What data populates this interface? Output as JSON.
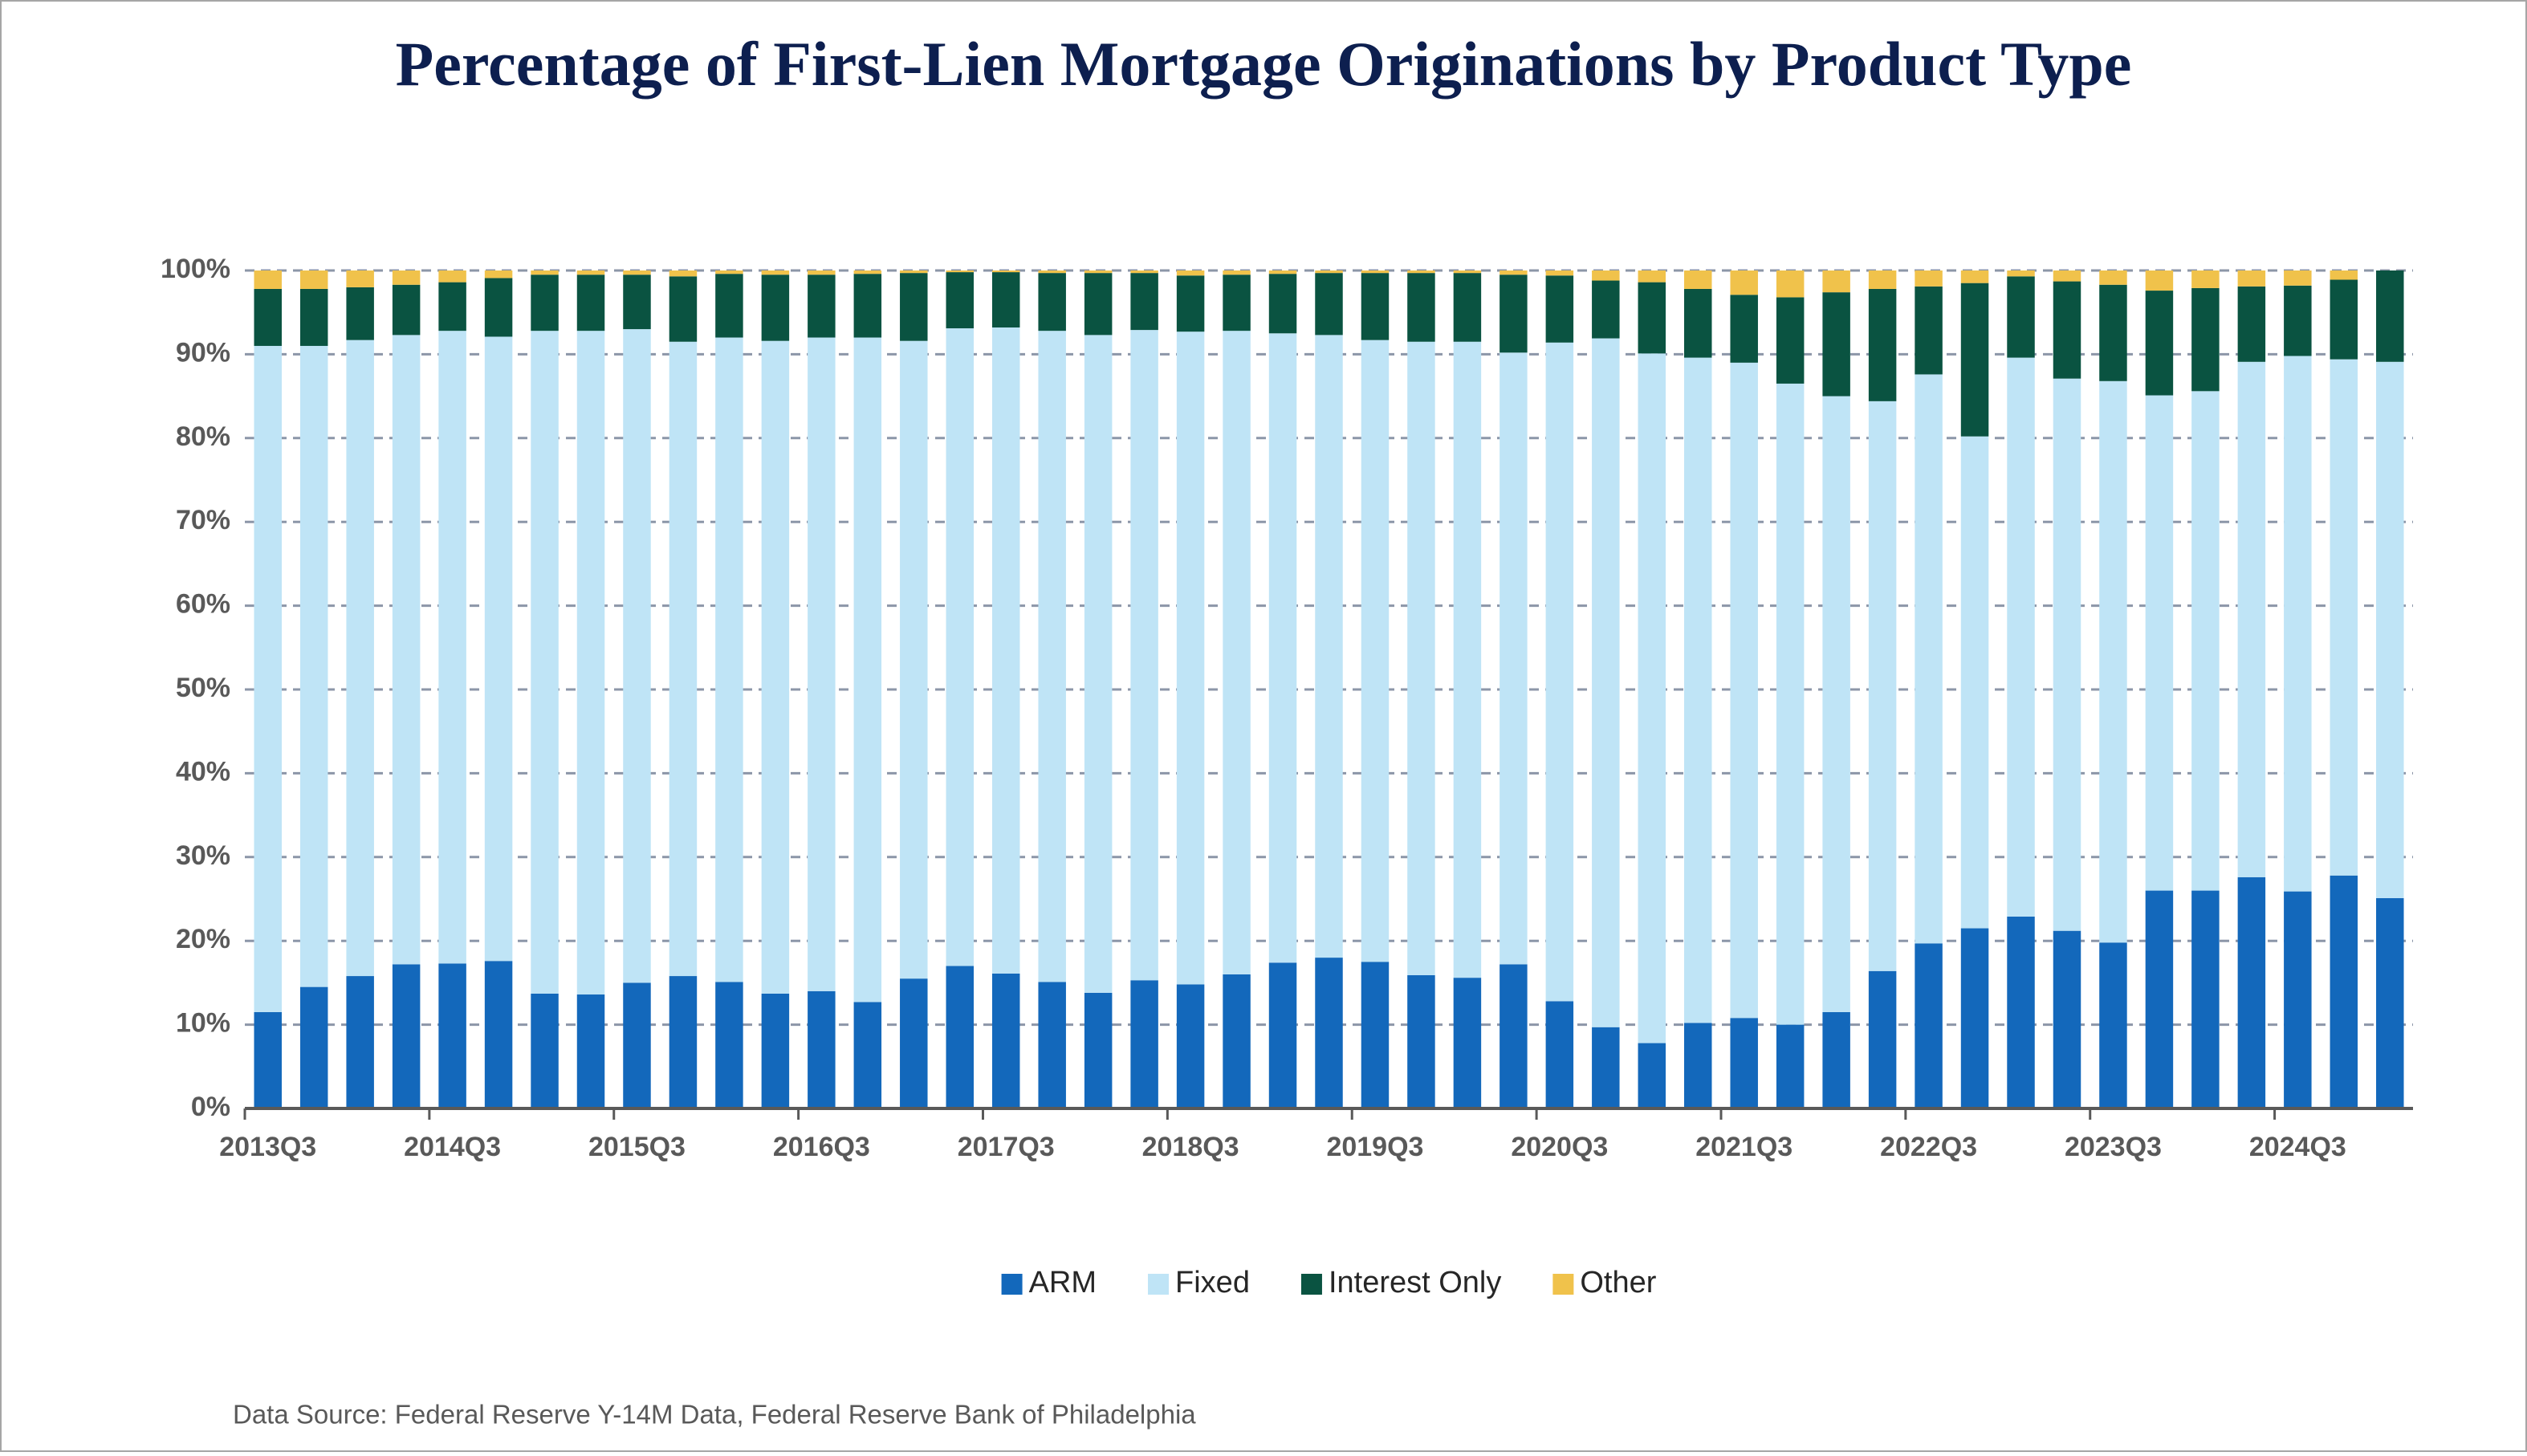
{
  "chart_data": {
    "type": "stacked_bar",
    "title": "Percentage of First-Lien Mortgage Originations by Product Type",
    "source": "Data Source: Federal Reserve Y-14M Data, Federal Reserve Bank of Philadelphia",
    "categories": [
      "2013Q3",
      null,
      null,
      null,
      "2014Q3",
      null,
      null,
      null,
      "2015Q3",
      null,
      null,
      null,
      "2016Q3",
      null,
      null,
      null,
      "2017Q3",
      null,
      null,
      null,
      "2018Q3",
      null,
      null,
      null,
      "2019Q3",
      null,
      null,
      null,
      "2020Q3",
      null,
      null,
      null,
      "2021Q3",
      null,
      null,
      null,
      "2022Q3",
      null,
      null,
      null,
      "2023Q3",
      null,
      null,
      null,
      "2024Q3",
      null,
      null
    ],
    "series": [
      {
        "name": "ARM",
        "color": "#1368bb",
        "values": [
          11.5,
          14.5,
          15.8,
          17.2,
          17.3,
          17.6,
          13.7,
          13.6,
          15,
          15.8,
          15.1,
          13.7,
          14,
          12.7,
          15.5,
          17,
          16.1,
          15.1,
          13.8,
          15.3,
          14.8,
          16,
          17.4,
          18,
          17.5,
          15.9,
          15.6,
          17.2,
          12.8,
          9.7,
          7.8,
          10.2,
          10.8,
          10,
          11.5,
          16.4,
          19.7,
          21.5,
          22.9,
          21.2,
          19.8,
          26,
          26,
          27.6,
          25.9,
          27.8,
          25.1
        ]
      },
      {
        "name": "Fixed",
        "color": "#bfe4f6",
        "values": [
          79.5,
          76.5,
          75.9,
          75.1,
          75.5,
          74.5,
          79.1,
          79.2,
          78,
          75.7,
          76.9,
          77.9,
          78,
          79.3,
          76.1,
          76.1,
          77.1,
          77.7,
          78.5,
          77.6,
          77.9,
          76.8,
          75.1,
          74.3,
          74.2,
          75.6,
          75.9,
          73,
          78.6,
          82.2,
          82.3,
          79.4,
          78.2,
          76.5,
          73.5,
          68,
          67.9,
          58.7,
          66.7,
          65.9,
          67,
          59.1,
          59.6,
          61.5,
          63.9,
          61.6,
          64
        ]
      },
      {
        "name": "Interest Only",
        "color": "#0a5341",
        "values": [
          6.8,
          6.8,
          6.3,
          6,
          5.8,
          7,
          6.7,
          6.7,
          6.5,
          7.8,
          7.6,
          7.9,
          7.5,
          7.6,
          8.1,
          6.7,
          6.6,
          6.9,
          7.4,
          6.8,
          6.7,
          6.7,
          7.1,
          7.4,
          8,
          8.2,
          8.2,
          9.3,
          8,
          6.9,
          8.5,
          8.2,
          8.1,
          10.3,
          12.4,
          13.4,
          10.5,
          18.3,
          9.7,
          11.6,
          11.5,
          12.5,
          12.3,
          9,
          8.4,
          9.5,
          10.9
        ]
      },
      {
        "name": "Other",
        "color": "#f0c24b",
        "values": [
          2.2,
          2.2,
          2,
          1.7,
          1.4,
          0.9,
          0.5,
          0.5,
          0.5,
          0.7,
          0.4,
          0.5,
          0.5,
          0.4,
          0.3,
          0.2,
          0.2,
          0.3,
          0.3,
          0.3,
          0.6,
          0.5,
          0.4,
          0.3,
          0.3,
          0.3,
          0.3,
          0.5,
          0.6,
          1.2,
          1.4,
          2.2,
          2.9,
          3.2,
          2.6,
          2.2,
          1.9,
          1.5,
          0.7,
          1.3,
          1.7,
          2.4,
          2.1,
          1.9,
          1.8,
          1.1,
          0
        ]
      }
    ],
    "ylim": [
      0,
      100
    ],
    "yticks": [
      {
        "value": 0,
        "label": "0%"
      },
      {
        "value": 10,
        "label": "10%"
      },
      {
        "value": 20,
        "label": "20%"
      },
      {
        "value": 30,
        "label": "30%"
      },
      {
        "value": 40,
        "label": "40%"
      },
      {
        "value": 50,
        "label": "50%"
      },
      {
        "value": 60,
        "label": "60%"
      },
      {
        "value": 70,
        "label": "70%"
      },
      {
        "value": 80,
        "label": "80%"
      },
      {
        "value": 90,
        "label": "90%"
      },
      {
        "value": 100,
        "label": "100%"
      }
    ],
    "grid": true,
    "legend": "bottom"
  }
}
